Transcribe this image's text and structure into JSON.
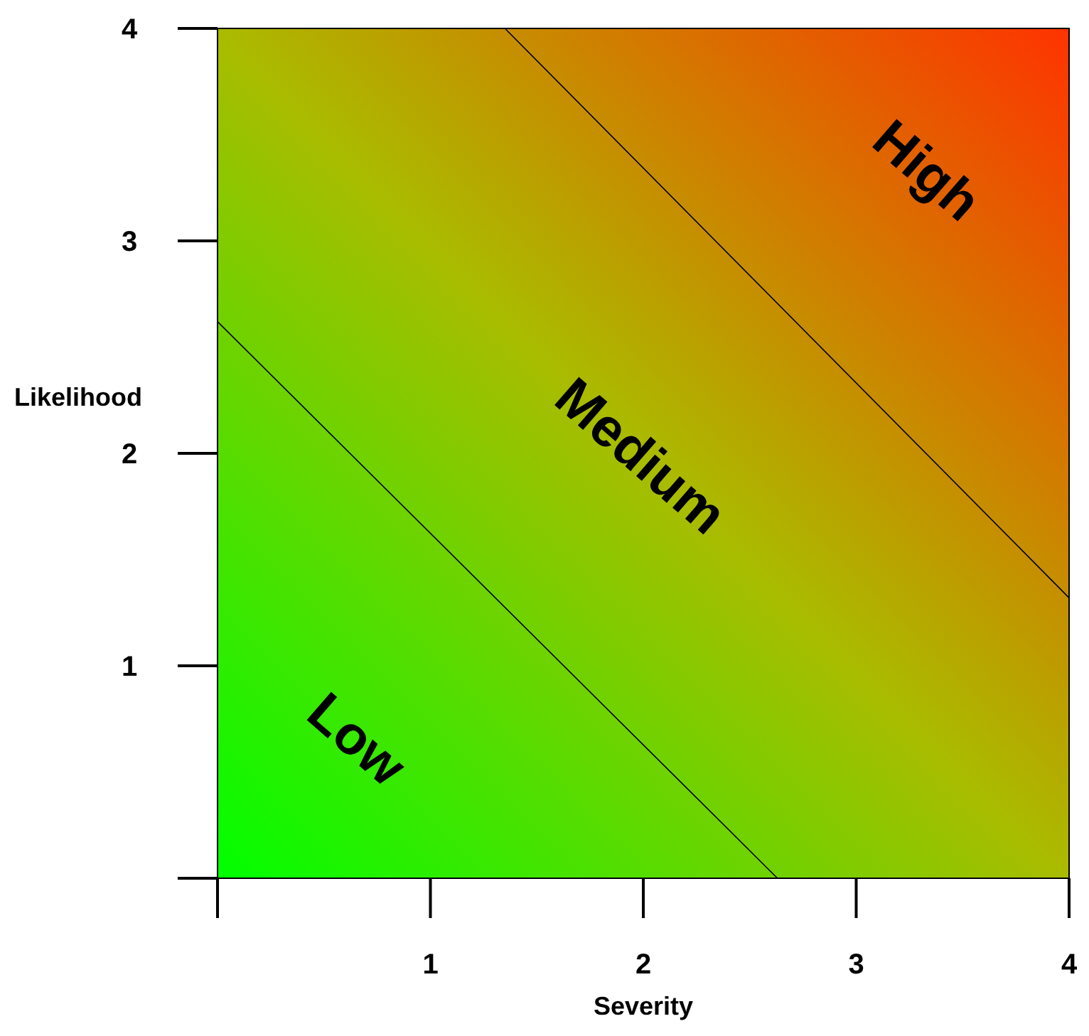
{
  "chart_data": {
    "type": "line",
    "xlabel": "Severity",
    "ylabel": "Likelihood",
    "xlim": [
      0,
      4
    ],
    "ylim": [
      0,
      4
    ],
    "xticks": [
      {
        "value": 0,
        "label": null
      },
      1,
      2,
      3,
      4
    ],
    "yticks": [
      {
        "value": 0,
        "label": null
      },
      1,
      2,
      3,
      4
    ],
    "series": [
      {
        "color": "#000000",
        "x": [
          0,
          2.63
        ],
        "values": [
          2.62,
          0
        ]
      },
      {
        "color": "#000000",
        "x": [
          1.35,
          4
        ],
        "values": [
          4,
          1.32
        ]
      }
    ],
    "marker": "none",
    "line_style": "solid",
    "grid": false,
    "annotations": [
      "Low",
      "Medium",
      "High"
    ]
  }
}
